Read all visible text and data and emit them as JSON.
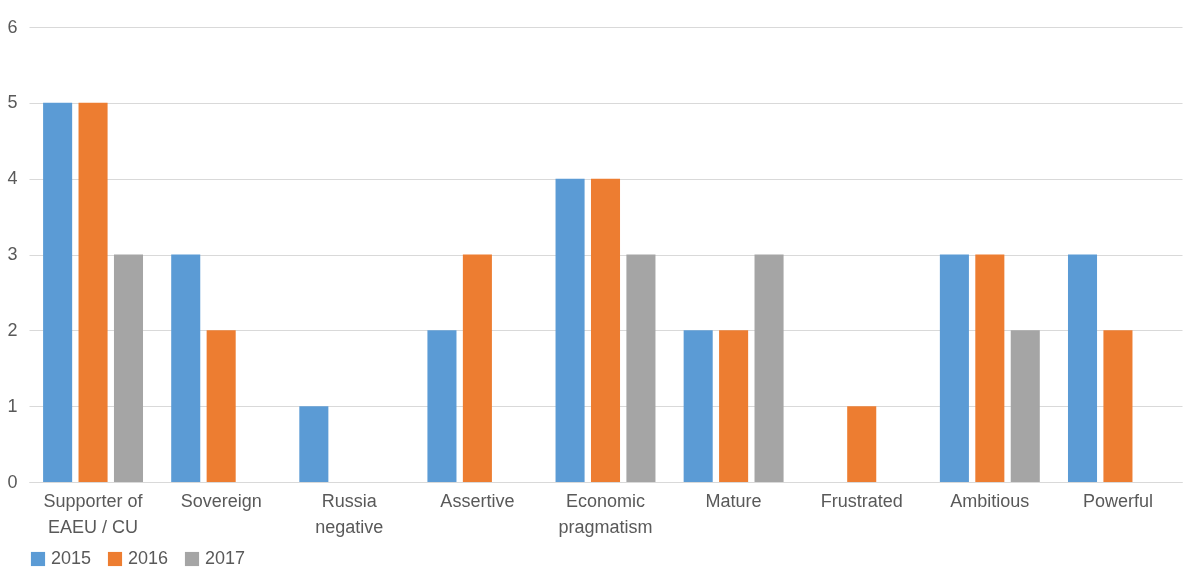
{
  "chart_data": {
    "type": "bar",
    "categories": [
      "Supporter of EAEU / CU",
      "Sovereign",
      "Russia negative",
      "Assertive",
      "Economic pragmatism",
      "Mature",
      "Frustrated",
      "Ambitious",
      "Powerful"
    ],
    "series": [
      {
        "name": "2015",
        "color": "#5b9bd5",
        "values": [
          5,
          3,
          1,
          2,
          4,
          2,
          0,
          3,
          3
        ]
      },
      {
        "name": "2016",
        "color": "#ed7d31",
        "values": [
          5,
          2,
          0,
          3,
          4,
          2,
          1,
          3,
          2
        ]
      },
      {
        "name": "2017",
        "color": "#a5a5a5",
        "values": [
          3,
          0,
          0,
          0,
          3,
          3,
          0,
          2,
          0
        ]
      }
    ],
    "ylim": [
      0,
      6
    ],
    "yticks": [
      0,
      1,
      2,
      3,
      4,
      5,
      6
    ],
    "grid": "y",
    "legend": "bottom"
  }
}
